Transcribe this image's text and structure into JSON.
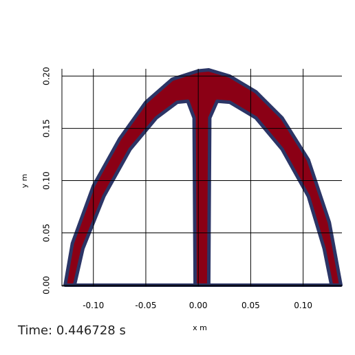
{
  "plot": {
    "x_axis": {
      "title": "x m",
      "range": [
        -0.13,
        0.137
      ],
      "ticks": [
        -0.1,
        -0.05,
        0.0,
        0.05,
        0.1
      ],
      "tick_labels": [
        "-0.10",
        "-0.05",
        "0.00",
        "0.05",
        "0.10"
      ]
    },
    "y_axis": {
      "title": "y m",
      "range": [
        -0.001,
        0.207
      ],
      "ticks": [
        0.0,
        0.05,
        0.1,
        0.15,
        0.2
      ],
      "tick_labels": [
        "0.00",
        "0.05",
        "0.10",
        "0.15",
        "0.20"
      ]
    },
    "grid": true,
    "field": {
      "fill_color": "#8b0015",
      "outline_color": "#2b3566",
      "outer_arch": [
        [
          -0.127,
          0.0
        ],
        [
          -0.12,
          0.04
        ],
        [
          -0.1,
          0.095
        ],
        [
          -0.075,
          0.14
        ],
        [
          -0.05,
          0.175
        ],
        [
          -0.025,
          0.197
        ],
        [
          0.0,
          0.205
        ],
        [
          0.01,
          0.206
        ],
        [
          0.03,
          0.2
        ],
        [
          0.055,
          0.185
        ],
        [
          0.08,
          0.16
        ],
        [
          0.105,
          0.12
        ],
        [
          0.125,
          0.06
        ],
        [
          0.136,
          0.0
        ]
      ],
      "inner_left_arch": [
        [
          -0.118,
          0.0
        ],
        [
          -0.11,
          0.035
        ],
        [
          -0.09,
          0.085
        ],
        [
          -0.065,
          0.13
        ],
        [
          -0.04,
          0.16
        ],
        [
          -0.02,
          0.175
        ],
        [
          -0.01,
          0.176
        ],
        [
          -0.004,
          0.16
        ],
        [
          -0.003,
          0.0
        ]
      ],
      "inner_right_arch": [
        [
          0.01,
          0.0
        ],
        [
          0.011,
          0.16
        ],
        [
          0.018,
          0.176
        ],
        [
          0.03,
          0.175
        ],
        [
          0.055,
          0.16
        ],
        [
          0.08,
          0.13
        ],
        [
          0.105,
          0.085
        ],
        [
          0.12,
          0.035
        ],
        [
          0.127,
          0.0
        ]
      ]
    }
  },
  "annotation": {
    "time_text": "Time: 0.446728 s"
  }
}
